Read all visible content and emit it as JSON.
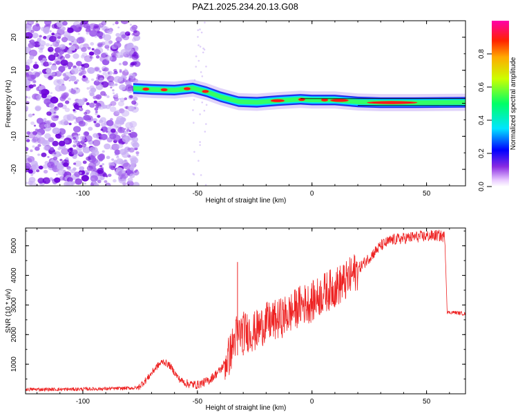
{
  "chart_data": [
    {
      "type": "heatmap",
      "title": "PAZ1.2025.234.20.13.G08",
      "xlabel": "Height of straight line (km)",
      "ylabel": "Frequency (Hz)",
      "xlim": [
        -125,
        67
      ],
      "ylim": [
        -25,
        25
      ],
      "xticks": [
        -100,
        -50,
        0,
        50
      ],
      "yticks": [
        -20,
        -10,
        0,
        10,
        20
      ],
      "colorbar": {
        "label": "Normalized spectral amplitude",
        "range": [
          0,
          1
        ],
        "ticks": [
          0.0,
          0.2,
          0.4,
          0.6,
          0.8
        ]
      },
      "ridge": {
        "description_points_x": [
          -78,
          -70,
          -60,
          -52,
          -46,
          -40,
          -32,
          -24,
          -15,
          -5,
          0,
          10,
          20,
          30,
          45,
          67
        ],
        "frequency_hz": [
          4.5,
          4.2,
          4.0,
          4.6,
          3.5,
          2.0,
          0.5,
          0.3,
          0.8,
          1.2,
          1.0,
          1.0,
          0.4,
          0.2,
          0.2,
          0.3
        ]
      },
      "noise_region_x": [
        -125,
        -76
      ]
    },
    {
      "type": "line",
      "xlabel": "Height of straight line (km)",
      "ylabel": "SNR (10 * v/v)",
      "xlim": [
        -125,
        67
      ],
      "ylim": [
        0,
        5600
      ],
      "xticks": [
        -100,
        -50,
        0,
        50
      ],
      "yticks": [
        1000,
        2000,
        3000,
        4000,
        5000
      ],
      "series": [
        {
          "name": "SNR",
          "color": "#ee2222",
          "x": [
            -125,
            -110,
            -90,
            -76,
            -72,
            -68,
            -65,
            -62,
            -58,
            -55,
            -50,
            -45,
            -40,
            -36,
            -33,
            -30,
            -25,
            -20,
            -15,
            -10,
            -5,
            0,
            5,
            10,
            15,
            20,
            25,
            30,
            35,
            40,
            45,
            50,
            55,
            58,
            59,
            62,
            67
          ],
          "y": [
            150,
            150,
            170,
            200,
            500,
            900,
            1100,
            950,
            500,
            350,
            300,
            450,
            800,
            1300,
            2000,
            2100,
            2100,
            2400,
            2500,
            2700,
            3000,
            3100,
            3400,
            3600,
            3800,
            4200,
            4600,
            5000,
            5200,
            5250,
            5300,
            5320,
            5350,
            5300,
            2750,
            2750,
            2700
          ]
        }
      ],
      "spikes": [
        {
          "x": -32.5,
          "y": 4450
        },
        {
          "x": -30,
          "y": 1500
        }
      ]
    }
  ],
  "colors": {
    "noise_dark": "#6a00d9",
    "noise_light": "#c9b0f5",
    "line": "#ee2222"
  }
}
